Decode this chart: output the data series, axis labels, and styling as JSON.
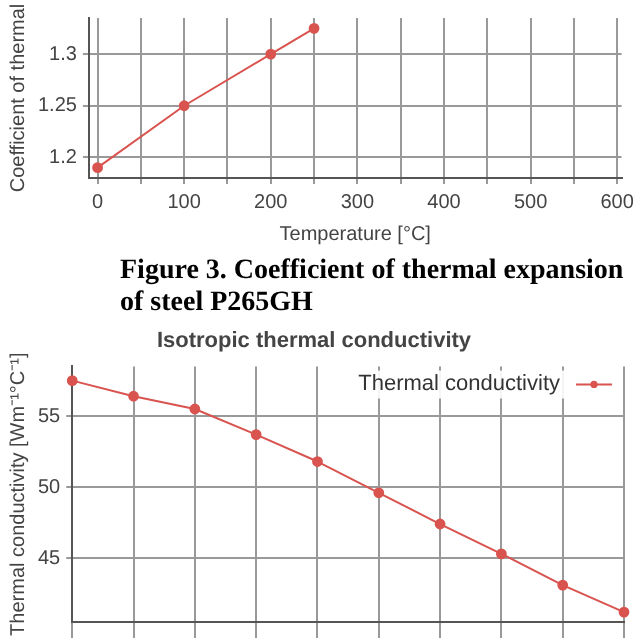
{
  "chart_data": [
    {
      "type": "line",
      "xlabel": "Temperature [°C]",
      "ylabel": "Coefficient of thermal",
      "x": [
        0,
        100,
        200,
        250
      ],
      "series": [
        {
          "color": "#d9534f",
          "values": [
            1.19,
            1.25,
            1.3,
            1.325
          ]
        }
      ],
      "xlim": [
        -10,
        605
      ],
      "xticks": [
        0,
        {
          "value": 50,
          "label": null
        },
        100,
        {
          "value": 150,
          "label": null
        },
        200,
        {
          "value": 250,
          "label": null
        },
        300,
        {
          "value": 350,
          "label": null
        },
        400,
        {
          "value": 450,
          "label": null
        },
        500,
        {
          "value": 550,
          "label": null
        },
        600
      ],
      "ylim": [
        1.18,
        1.335
      ],
      "yticks": [
        1.2,
        1.25,
        1.3
      ],
      "grid": true,
      "marker": "circle",
      "legend": false,
      "annotations": [
        "Figure 3. Coefficient of thermal expansion of steel P265GH"
      ]
    },
    {
      "type": "line",
      "title": "Isotropic thermal conductivity",
      "ylabel": "Thermal conductivity [Wm⁻¹°C⁻¹]",
      "categories": [
        null,
        null,
        null,
        null,
        null,
        null,
        null,
        null,
        null,
        null
      ],
      "series": [
        {
          "name": "Thermal conductivity",
          "color": "#d9534f",
          "values": [
            57.5,
            56.4,
            55.5,
            53.7,
            51.8,
            49.6,
            47.4,
            45.3,
            43.1,
            41.2
          ]
        }
      ],
      "ylim": [
        40.5,
        58.5
      ],
      "yticks": [
        45,
        50,
        55
      ],
      "grid": true,
      "marker": "circle",
      "legend": "top right",
      "tick_labels": "y"
    }
  ]
}
